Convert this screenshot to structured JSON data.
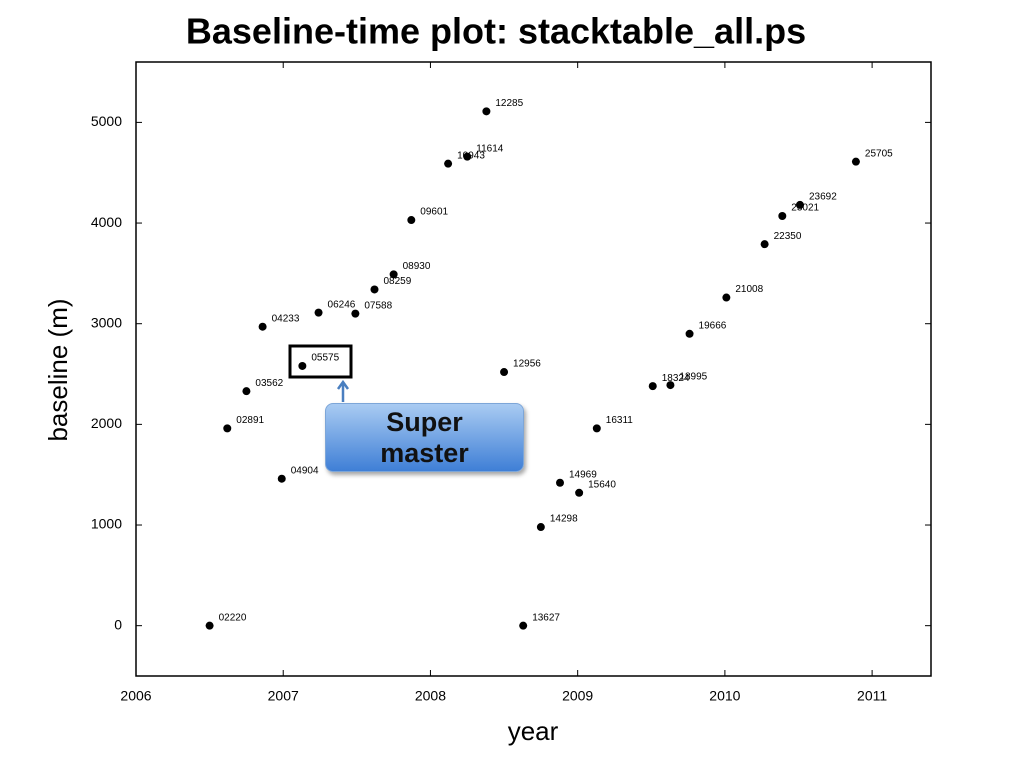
{
  "chart_data": {
    "type": "scatter",
    "title": "Baseline-time plot: stacktable_all.ps",
    "xlabel": "year",
    "ylabel": "baseline (m)",
    "x": [
      2006.5,
      2006.62,
      2006.75,
      2006.86,
      2006.99,
      2007.13,
      2007.24,
      2007.49,
      2007.62,
      2007.75,
      2007.87,
      2008.12,
      2008.25,
      2008.38,
      2008.5,
      2008.63,
      2008.75,
      2008.88,
      2009.01,
      2009.13,
      2009.51,
      2009.63,
      2009.76,
      2010.01,
      2010.27,
      2010.39,
      2010.51,
      2010.89
    ],
    "values": [
      0,
      1960,
      2330,
      2970,
      1460,
      2580,
      3110,
      3100,
      3340,
      3490,
      4030,
      4590,
      4660,
      5110,
      2520,
      0,
      980,
      1420,
      1320,
      1960,
      2380,
      2390,
      2900,
      3260,
      3790,
      4070,
      4180,
      4610
    ],
    "labels": [
      "02220",
      "02891",
      "03562",
      "04233",
      "04904",
      "05575",
      "06246",
      "07588",
      "08259",
      "08930",
      "09601",
      "10943",
      "11614",
      "12285",
      "12956",
      "13627",
      "14298",
      "14969",
      "15640",
      "16311",
      "18324",
      "18995",
      "19666",
      "21008",
      "22350",
      "23021",
      "23692",
      "25705"
    ],
    "color": "#000000",
    "xlim": [
      2006,
      2011.4
    ],
    "xticks": [
      2006,
      2007,
      2008,
      2009,
      2010,
      2011
    ],
    "ylim": [
      -500,
      5600
    ],
    "yticks": [
      0,
      1000,
      2000,
      3000,
      4000,
      5000
    ],
    "annotation": "Super master"
  }
}
